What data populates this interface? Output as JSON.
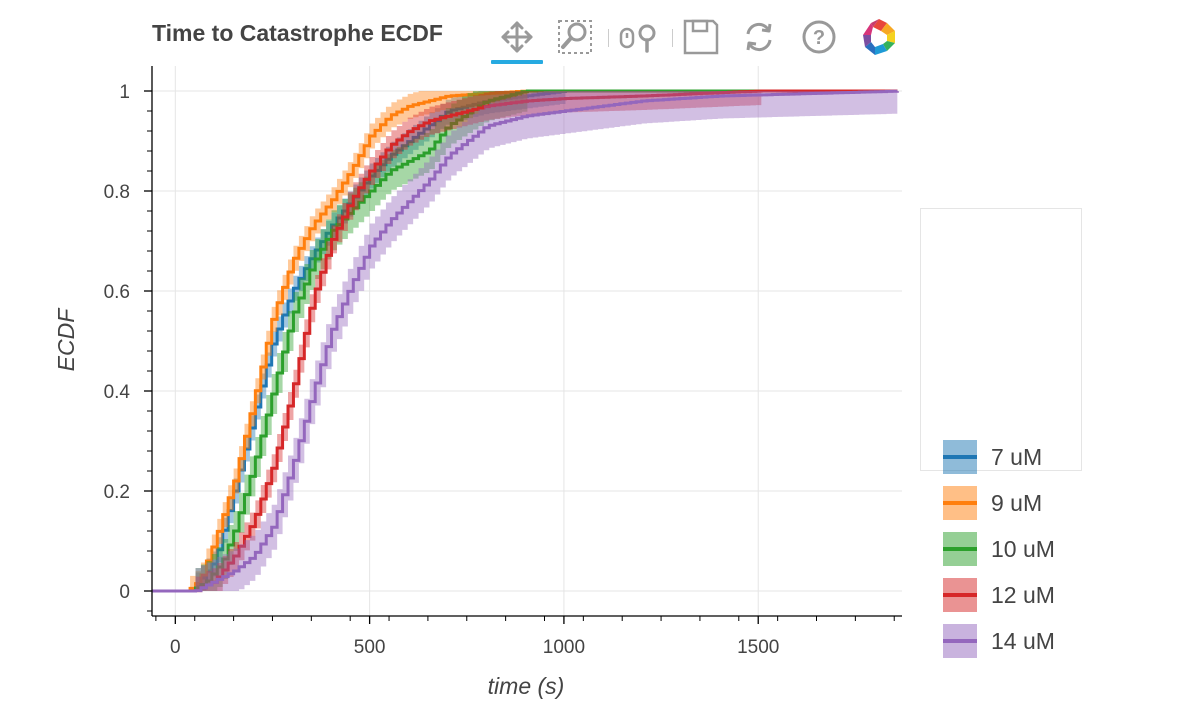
{
  "title": "Time to Catastrophe ECDF",
  "toolbar": {
    "tools": [
      {
        "name": "pan-tool",
        "icon": "pan-arrows-icon",
        "active": true
      },
      {
        "name": "box-zoom-tool",
        "icon": "box-zoom-icon",
        "active": false
      },
      {
        "name": "wheel-zoom-tool",
        "icon": "wheel-zoom-icon",
        "active": false
      },
      {
        "name": "save-tool",
        "icon": "save-floppy-icon",
        "active": false
      },
      {
        "name": "reset-tool",
        "icon": "reset-icon",
        "active": false
      },
      {
        "name": "help-tool",
        "icon": "help-icon",
        "active": false
      },
      {
        "name": "bokeh-logo",
        "icon": "bokeh-logo-icon",
        "active": false
      }
    ]
  },
  "legend": {
    "items": [
      {
        "label": "7 uM",
        "color": "#1f77b4"
      },
      {
        "label": "9 uM",
        "color": "#ff7f0e"
      },
      {
        "label": "10 uM",
        "color": "#2ca02c"
      },
      {
        "label": "12 uM",
        "color": "#d62728"
      },
      {
        "label": "14 uM",
        "color": "#9467bd"
      }
    ]
  },
  "chart_data": {
    "type": "line",
    "title": "Time to Catastrophe ECDF",
    "xlabel": "time (s)",
    "ylabel": "ECDF",
    "xlim": [
      -60,
      1870
    ],
    "ylim": [
      -0.05,
      1.05
    ],
    "x_ticks": [
      0,
      500,
      1000,
      1500
    ],
    "x_tick_labels": [
      "0",
      "500",
      "1000",
      "1500"
    ],
    "y_ticks": [
      0,
      0.2,
      0.4,
      0.6,
      0.8,
      1
    ],
    "y_tick_labels": [
      "0",
      "0.2",
      "0.4",
      "0.6",
      "0.8",
      "1"
    ],
    "grid": true,
    "legend_position": "right",
    "series": [
      {
        "name": "7 uM",
        "color": "#1f77b4",
        "x": [
          -60,
          40,
          100,
          150,
          200,
          250,
          300,
          350,
          400,
          450,
          500,
          550,
          600,
          650,
          700,
          800,
          900,
          1000,
          1870
        ],
        "y": [
          0,
          0,
          0.06,
          0.2,
          0.35,
          0.5,
          0.6,
          0.67,
          0.73,
          0.78,
          0.83,
          0.87,
          0.9,
          0.93,
          0.96,
          0.98,
          0.99,
          1,
          1
        ],
        "band": 0.025
      },
      {
        "name": "9 uM",
        "color": "#ff7f0e",
        "x": [
          -60,
          30,
          60,
          100,
          150,
          200,
          250,
          300,
          350,
          400,
          450,
          500,
          550,
          600,
          650,
          700,
          800,
          900,
          1000,
          1870
        ],
        "y": [
          0,
          0,
          0.02,
          0.1,
          0.22,
          0.38,
          0.55,
          0.66,
          0.73,
          0.78,
          0.84,
          0.91,
          0.95,
          0.97,
          0.98,
          0.99,
          0.995,
          1,
          1,
          1
        ],
        "band": 0.025
      },
      {
        "name": "10 uM",
        "color": "#2ca02c",
        "x": [
          -60,
          40,
          80,
          120,
          150,
          200,
          250,
          300,
          350,
          400,
          450,
          500,
          550,
          600,
          650,
          700,
          800,
          900,
          1000,
          1870
        ],
        "y": [
          0,
          0,
          0.02,
          0.06,
          0.12,
          0.25,
          0.4,
          0.55,
          0.65,
          0.72,
          0.76,
          0.8,
          0.84,
          0.86,
          0.88,
          0.93,
          0.98,
          1,
          1,
          1
        ],
        "band": 0.04
      },
      {
        "name": "12 uM",
        "color": "#d62728",
        "x": [
          -60,
          50,
          100,
          150,
          200,
          250,
          300,
          350,
          400,
          450,
          500,
          550,
          600,
          650,
          700,
          800,
          900,
          1000,
          1200,
          1500,
          1870
        ],
        "y": [
          0,
          0,
          0.02,
          0.07,
          0.14,
          0.25,
          0.4,
          0.58,
          0.7,
          0.78,
          0.84,
          0.89,
          0.92,
          0.94,
          0.95,
          0.97,
          0.98,
          0.985,
          0.99,
          1,
          1
        ],
        "band": 0.028
      },
      {
        "name": "14 uM",
        "color": "#9467bd",
        "x": [
          -60,
          50,
          100,
          150,
          200,
          250,
          300,
          350,
          400,
          450,
          500,
          550,
          600,
          650,
          700,
          750,
          800,
          900,
          1000,
          1200,
          1400,
          1870
        ],
        "y": [
          0,
          0,
          0.02,
          0.04,
          0.07,
          0.13,
          0.25,
          0.39,
          0.52,
          0.61,
          0.69,
          0.74,
          0.78,
          0.82,
          0.87,
          0.9,
          0.93,
          0.95,
          0.96,
          0.98,
          0.99,
          1
        ],
        "band": 0.045
      }
    ]
  }
}
